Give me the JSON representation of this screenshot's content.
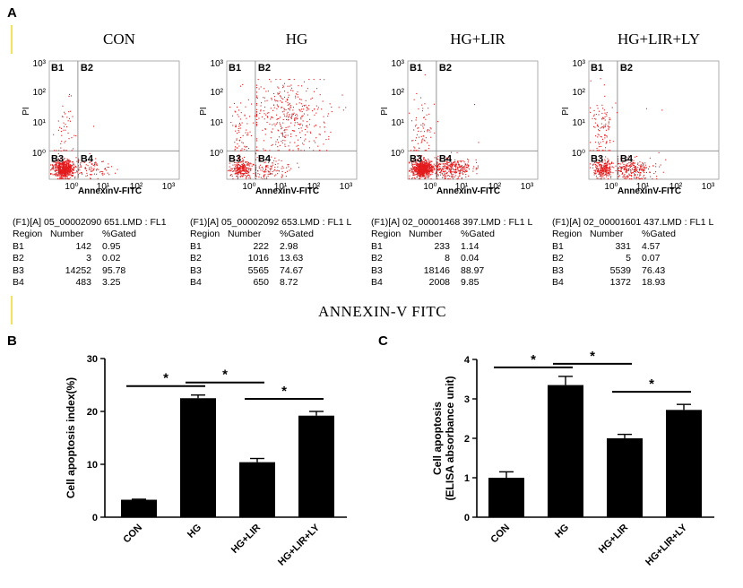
{
  "panel_labels": {
    "a": "A",
    "b": "B",
    "c": "C"
  },
  "flow_panels": [
    {
      "title": "CON",
      "y_label": "PI",
      "x_label": "AnnexinV-FITC",
      "y_ticks": [
        "10³",
        "10²",
        "10¹",
        "10⁰"
      ],
      "x_ticks": [
        "10⁰",
        "10¹",
        "10²",
        "10³"
      ],
      "quadrants": [
        "B1",
        "B2",
        "B3",
        "B4"
      ],
      "header": "(F1)[A] 05_00002090 651.LMD : FL1",
      "columns": [
        "Region",
        "Number",
        "%Gated"
      ],
      "rows": [
        [
          "B1",
          "142",
          "0.95"
        ],
        [
          "B2",
          "3",
          "0.02"
        ],
        [
          "B3",
          "14252",
          "95.78"
        ],
        [
          "B4",
          "483",
          "3.25"
        ]
      ]
    },
    {
      "title": "HG",
      "y_label": "PI",
      "x_label": "AnnexinV-FITC",
      "y_ticks": [
        "10³",
        "10²",
        "10¹",
        "10⁰"
      ],
      "x_ticks": [
        "10⁰",
        "10¹",
        "10²",
        "10³"
      ],
      "quadrants": [
        "B1",
        "B2",
        "B3",
        "B4"
      ],
      "header": "(F1)[A] 05_00002092 653.LMD : FL1 L",
      "columns": [
        "Region",
        "Number",
        "%Gated"
      ],
      "rows": [
        [
          "B1",
          "222",
          "2.98"
        ],
        [
          "B2",
          "1016",
          "13.63"
        ],
        [
          "B3",
          "5565",
          "74.67"
        ],
        [
          "B4",
          "650",
          "8.72"
        ]
      ]
    },
    {
      "title": "HG+LIR",
      "y_label": "PI",
      "x_label": "AnnexinV-FITC",
      "y_ticks": [
        "10³",
        "10²",
        "10¹",
        "10⁰"
      ],
      "x_ticks": [
        "10⁰",
        "10¹",
        "10²",
        "10³"
      ],
      "quadrants": [
        "B1",
        "B2",
        "B3",
        "B4"
      ],
      "header": "(F1)[A] 02_00001468 397.LMD : FL1 L",
      "columns": [
        "Region",
        "Number",
        "%Gated"
      ],
      "rows": [
        [
          "B1",
          "233",
          "1.14"
        ],
        [
          "B2",
          "8",
          "0.04"
        ],
        [
          "B3",
          "18146",
          "88.97"
        ],
        [
          "B4",
          "2008",
          "9.85"
        ]
      ]
    },
    {
      "title": "HG+LIR+LY",
      "y_label": "PI",
      "x_label": "AnnexinV-FITC",
      "y_ticks": [
        "10³",
        "10²",
        "10¹",
        "10⁰"
      ],
      "x_ticks": [
        "10⁰",
        "10¹",
        "10²",
        "10³"
      ],
      "quadrants": [
        "B1",
        "B2",
        "B3",
        "B4"
      ],
      "header": "(F1)[A] 02_00001601 437.LMD : FL1 L",
      "columns": [
        "Region",
        "Number",
        "%Gated"
      ],
      "rows": [
        [
          "B1",
          "331",
          "4.57"
        ],
        [
          "B2",
          "5",
          "0.07"
        ],
        [
          "B3",
          "5539",
          "76.43"
        ],
        [
          "B4",
          "1372",
          "18.93"
        ]
      ]
    }
  ],
  "annexin_label": "ANNEXIN-V FITC",
  "colors": {
    "scatter": "#e31a1c",
    "bar": "#000000"
  },
  "chart_data": [
    {
      "type": "bar",
      "panel": "B",
      "categories": [
        "CON",
        "HG",
        "HG+LIR",
        "HG+LIR+LY"
      ],
      "values": [
        3.3,
        22.5,
        10.4,
        19.2
      ],
      "errors": [
        0.1,
        0.6,
        0.7,
        0.8
      ],
      "ylabel": "Cell apoptosis index(%)",
      "ylim": [
        0,
        30
      ],
      "yticks": [
        0,
        10,
        20,
        30
      ],
      "significance": [
        {
          "from": "CON",
          "to": "HG",
          "label": "*"
        },
        {
          "from": "HG",
          "to": "HG+LIR",
          "label": "*"
        },
        {
          "from": "HG+LIR",
          "to": "HG+LIR+LY",
          "label": "*"
        }
      ]
    },
    {
      "type": "bar",
      "panel": "C",
      "categories": [
        "CON",
        "HG",
        "HG+LIR",
        "HG+LIR+LY"
      ],
      "values": [
        1.0,
        3.35,
        2.0,
        2.72
      ],
      "errors": [
        0.15,
        0.22,
        0.1,
        0.14
      ],
      "ylabel": "Cell apoptosis",
      "ylabel2": "(ELISA absorbance unit)",
      "ylim": [
        0,
        4
      ],
      "yticks": [
        0,
        1,
        2,
        3,
        4
      ],
      "significance": [
        {
          "from": "CON",
          "to": "HG",
          "label": "*"
        },
        {
          "from": "HG",
          "to": "HG+LIR",
          "label": "*"
        },
        {
          "from": "HG+LIR",
          "to": "HG+LIR+LY",
          "label": "*"
        }
      ]
    }
  ]
}
